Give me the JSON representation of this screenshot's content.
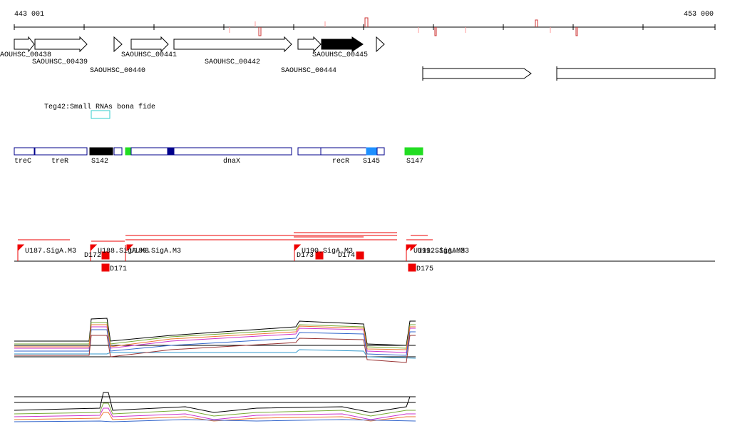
{
  "axis": {
    "start": "443 001",
    "end": "453 000"
  },
  "genes": [
    "AOUHSC_00438",
    "SAOUHSC_00439",
    "SAOUHSC_00440",
    "SAOUHSC_00441",
    "SAOUHSC_00442",
    "SAOUHSC_00444",
    "SAOUHSC_00445"
  ],
  "small_rna": {
    "label": "Teg42:Small RNAs bona fide"
  },
  "features": [
    "treC",
    "treR",
    "S142",
    "dnaX",
    "recR",
    "S145",
    "S147"
  ],
  "promoters": [
    "U187.SigA.M3",
    "U188.SigA.M3",
    "U189.SigA.M3",
    "D172",
    "D171",
    "U190.SigA.M3",
    "D173",
    "D174",
    "U191.SigA.M3",
    "U192.SigA.M3",
    "D175"
  ]
}
